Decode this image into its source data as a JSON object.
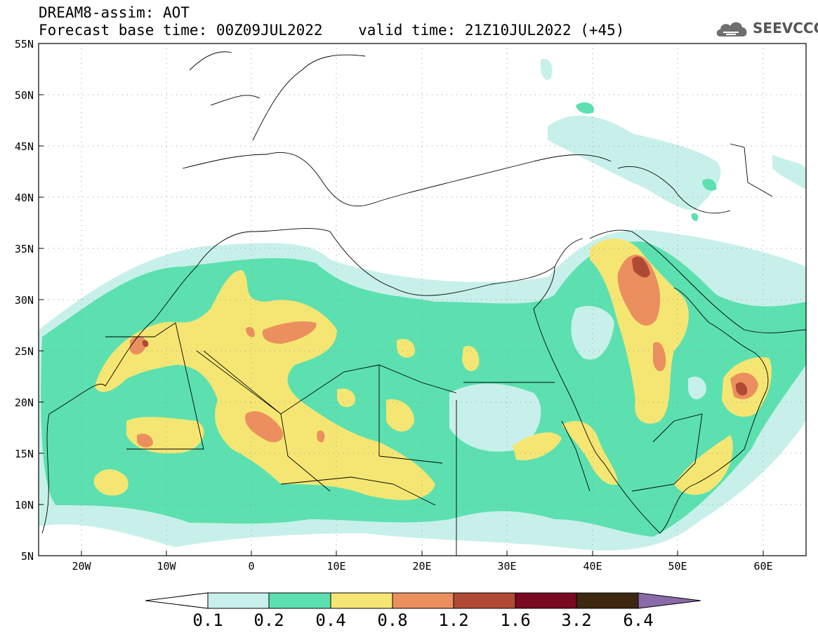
{
  "header": {
    "line1": "DREAM8-assim: AOT",
    "line2": "Forecast base time: 00Z09JUL2022    valid time: 21Z10JUL2022 (+45)"
  },
  "logo": {
    "text": "SEEVCCC",
    "icon": "cloud-icon"
  },
  "map": {
    "lon_range": [
      -25,
      65
    ],
    "lat_range": [
      5,
      55
    ],
    "grid": true,
    "lat_ticks": [
      "5N",
      "10N",
      "15N",
      "20N",
      "25N",
      "30N",
      "35N",
      "40N",
      "45N",
      "50N",
      "55N"
    ],
    "lon_ticks": [
      "20W",
      "10W",
      "0",
      "10E",
      "20E",
      "30E",
      "40E",
      "50E",
      "60E"
    ]
  },
  "colorbar": {
    "labels": [
      "0.1",
      "0.2",
      "0.4",
      "0.8",
      "1.2",
      "1.6",
      "3.2",
      "6.4"
    ],
    "colors": [
      "#c8f0ea",
      "#5ce0b0",
      "#f5e673",
      "#ec8f5e",
      "#b04a35",
      "#7a0a22",
      "#3d2710",
      "#8a6aa8"
    ]
  }
}
